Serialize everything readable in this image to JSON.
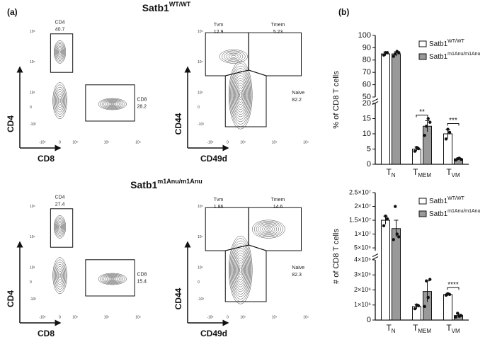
{
  "panel_a": {
    "label": "(a)",
    "x_ticks": [
      "-10³",
      "0",
      "10³",
      "10⁴",
      "10⁵"
    ],
    "y_ticks": [
      "-10³",
      "0",
      "10³",
      "10⁴",
      "10⁵"
    ],
    "rows": [
      {
        "title": "Satb1",
        "title_sup": "WT/WT",
        "plots": [
          {
            "x_label": "CD8",
            "y_label": "CD4",
            "gates": [
              {
                "name": "CD4",
                "value": 40.7
              },
              {
                "name": "CD8",
                "value": 28.2
              }
            ]
          },
          {
            "x_label": "CD49d",
            "y_label": "CD44",
            "gates": [
              {
                "name": "Tvm",
                "value": 12.9
              },
              {
                "name": "Tmem",
                "value": 5.23
              },
              {
                "name": "Naive",
                "value": 82.2
              }
            ]
          }
        ]
      },
      {
        "title": "Satb1",
        "title_sup": "m1Anu/m1Anu",
        "plots": [
          {
            "x_label": "CD8",
            "y_label": "CD4",
            "gates": [
              {
                "name": "CD4",
                "value": 27.4
              },
              {
                "name": "CD8",
                "value": 15.4
              }
            ]
          },
          {
            "x_label": "CD49d",
            "y_label": "CD44",
            "gates": [
              {
                "name": "Tvm",
                "value": 1.86
              },
              {
                "name": "Tmem",
                "value": 14.6
              },
              {
                "name": "Naive",
                "value": 82.3
              }
            ]
          }
        ]
      }
    ]
  },
  "panel_b_label": "(b)",
  "chart_data": [
    {
      "type": "bar",
      "y_label": "% of CD8 T cells",
      "categories": [
        "T",
        "T",
        "T"
      ],
      "category_subscripts": [
        "N",
        "MEM",
        "VM"
      ],
      "segments": [
        {
          "ylim": [
            0,
            20
          ],
          "yticks": [
            0,
            5,
            10,
            15,
            20
          ]
        },
        {
          "ylim": [
            50,
            100
          ],
          "yticks": [
            50,
            60,
            70,
            80,
            90,
            100
          ]
        }
      ],
      "series": [
        {
          "name": "Satb1",
          "name_sup": "WT/WT",
          "color": "#ffffff",
          "values": [
            85,
            5,
            10
          ],
          "errors": [
            1.5,
            0.7,
            1.5
          ],
          "points": [
            [
              84,
              86,
              86
            ],
            [
              4.3,
              5.5,
              5.1
            ],
            [
              8.3,
              11.5,
              10.5
            ]
          ]
        },
        {
          "name": "Satb1",
          "name_sup": "m1Anu/m1Anu",
          "color": "#999999",
          "values": [
            85,
            12.5,
            1.8
          ],
          "errors": [
            1.8,
            1.8,
            0.3
          ],
          "points": [
            [
              83,
              85,
              87,
              86
            ],
            [
              9.5,
              12.5,
              15,
              13.8
            ],
            [
              1.4,
              1.8,
              2.0,
              1.6
            ]
          ]
        }
      ],
      "significance": [
        null,
        "**",
        "***"
      ]
    },
    {
      "type": "bar",
      "y_label": "# of CD8 T cells",
      "categories": [
        "T",
        "T",
        "T"
      ],
      "category_subscripts": [
        "N",
        "MEM",
        "VM"
      ],
      "segments": [
        {
          "ylim": [
            0,
            4000000
          ],
          "yticks": [
            0,
            {
              "value": 1000000,
              "label": "1×10⁶"
            },
            {
              "value": 2000000,
              "label": "2×10⁶"
            },
            {
              "value": 3000000,
              "label": "3×10⁶"
            },
            {
              "value": 4000000,
              "label": "4×10⁶"
            }
          ]
        },
        {
          "ylim": [
            4000000,
            25000000
          ],
          "yticks": [
            {
              "value": 5000000,
              "label": "5×10⁶"
            },
            {
              "value": 10000000,
              "label": "1×10⁷"
            },
            {
              "value": 15000000,
              "label": "1.5×10⁷"
            },
            {
              "value": 20000000,
              "label": "2×10⁷"
            },
            {
              "value": 25000000,
              "label": "2.5×10⁷"
            }
          ]
        }
      ],
      "series": [
        {
          "name": "Satb1",
          "name_sup": "WT/WT",
          "color": "#ffffff",
          "values": [
            15000000,
            900000,
            1700000
          ],
          "errors": [
            1500000,
            150000,
            80000
          ],
          "points": [
            [
              13000000,
              16500000,
              15500000
            ],
            [
              750000,
              1000000,
              950000
            ],
            [
              1650000,
              1750000,
              1700000
            ]
          ]
        },
        {
          "name": "Satb1",
          "name_sup": "m1Anu/m1Anu",
          "color": "#999999",
          "values": [
            12000000,
            1900000,
            300000
          ],
          "errors": [
            3000000,
            700000,
            100000
          ],
          "points": [
            [
              8000000,
              20000000,
              10000000,
              9000000
            ],
            [
              900000,
              2600000,
              1500000,
              2700000
            ],
            [
              200000,
              450000,
              250000,
              300000
            ]
          ]
        }
      ],
      "significance": [
        null,
        null,
        "****"
      ]
    }
  ]
}
